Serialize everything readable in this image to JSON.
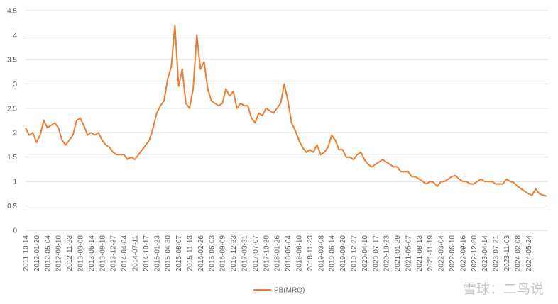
{
  "chart_data": {
    "type": "line",
    "categories": [
      "2011-10-14",
      null,
      null,
      "2012-01-20",
      null,
      null,
      "2012-05-04",
      null,
      null,
      "2012-08-10",
      null,
      null,
      "2012-11-23",
      null,
      null,
      "2013-03-08",
      null,
      null,
      "2013-06-14",
      null,
      null,
      "2013-09-18",
      null,
      null,
      "2013-12-27",
      null,
      null,
      "2014-04-04",
      null,
      null,
      "2014-07-11",
      null,
      null,
      "2014-10-17",
      null,
      null,
      "2015-01-23",
      null,
      null,
      "2015-04-30",
      null,
      null,
      "2015-08-07",
      null,
      null,
      "2015-11-13",
      null,
      null,
      "2016-02-26",
      null,
      null,
      "2016-06-03",
      null,
      null,
      "2016-09-09",
      null,
      null,
      "2016-12-23",
      null,
      null,
      "2017-03-31",
      null,
      null,
      "2017-07-07",
      null,
      null,
      "2017-10-20",
      null,
      null,
      "2018-01-26",
      null,
      null,
      "2018-05-04",
      null,
      null,
      "2018-08-10",
      null,
      null,
      "2018-11-23",
      null,
      null,
      "2019-03-08",
      null,
      null,
      "2019-06-14",
      null,
      null,
      "2019-09-20",
      null,
      null,
      "2019-12-27",
      null,
      null,
      "2020-04-10",
      null,
      null,
      "2020-07-17",
      null,
      null,
      "2020-10-23",
      null,
      null,
      "2021-01-29",
      null,
      null,
      "2021-05-07",
      null,
      null,
      "2021-08-13",
      null,
      null,
      "2021-11-19",
      null,
      null,
      "2022-03-04",
      null,
      null,
      "2022-06-10",
      null,
      null,
      "2022-09-16",
      null,
      null,
      "2022-12-30",
      null,
      null,
      "2023-04-14",
      null,
      null,
      "2023-07-21",
      null,
      null,
      "2023-11-03",
      null,
      null,
      "2024-02-08",
      null,
      null,
      "2024-05-24",
      null,
      null,
      null,
      null,
      null
    ],
    "series": [
      {
        "name": "PB(MRQ)",
        "color": "#ed7d31",
        "values": [
          2.1,
          1.95,
          2.0,
          1.8,
          1.95,
          2.25,
          2.1,
          2.15,
          2.2,
          2.1,
          1.85,
          1.75,
          1.85,
          1.95,
          2.25,
          2.3,
          2.15,
          1.95,
          2.0,
          1.95,
          2.0,
          1.85,
          1.75,
          1.7,
          1.6,
          1.55,
          1.55,
          1.55,
          1.45,
          1.5,
          1.45,
          1.55,
          1.65,
          1.75,
          1.85,
          2.1,
          2.4,
          2.55,
          2.65,
          3.1,
          3.35,
          4.2,
          2.95,
          3.3,
          2.6,
          2.5,
          2.9,
          4.0,
          3.3,
          3.45,
          2.9,
          2.65,
          2.6,
          2.55,
          2.6,
          2.9,
          2.75,
          2.85,
          2.5,
          2.6,
          2.55,
          2.55,
          2.3,
          2.2,
          2.4,
          2.35,
          2.5,
          2.45,
          2.4,
          2.5,
          2.6,
          3.0,
          2.65,
          2.2,
          2.05,
          1.85,
          1.7,
          1.6,
          1.65,
          1.6,
          1.75,
          1.55,
          1.6,
          1.7,
          1.95,
          1.85,
          1.65,
          1.65,
          1.5,
          1.5,
          1.45,
          1.55,
          1.6,
          1.45,
          1.35,
          1.3,
          1.35,
          1.4,
          1.45,
          1.4,
          1.35,
          1.3,
          1.3,
          1.2,
          1.2,
          1.2,
          1.1,
          1.1,
          1.05,
          1.0,
          0.95,
          1.0,
          0.98,
          0.9,
          1.0,
          1.0,
          1.05,
          1.1,
          1.12,
          1.05,
          1.0,
          1.0,
          0.95,
          0.95,
          1.0,
          1.05,
          1.0,
          1.0,
          1.0,
          0.95,
          0.95,
          0.95,
          1.05,
          1.0,
          0.98,
          0.9,
          0.85,
          0.8,
          0.75,
          0.72,
          0.85,
          0.75,
          0.72,
          0.7
        ]
      }
    ],
    "ylim": [
      0,
      4.5
    ],
    "yticks": [
      0,
      0.5,
      1,
      1.5,
      2,
      2.5,
      3,
      3.5,
      4,
      4.5
    ],
    "grid": true,
    "legend": "bottom",
    "watermark": "雪球：二鸟说"
  }
}
